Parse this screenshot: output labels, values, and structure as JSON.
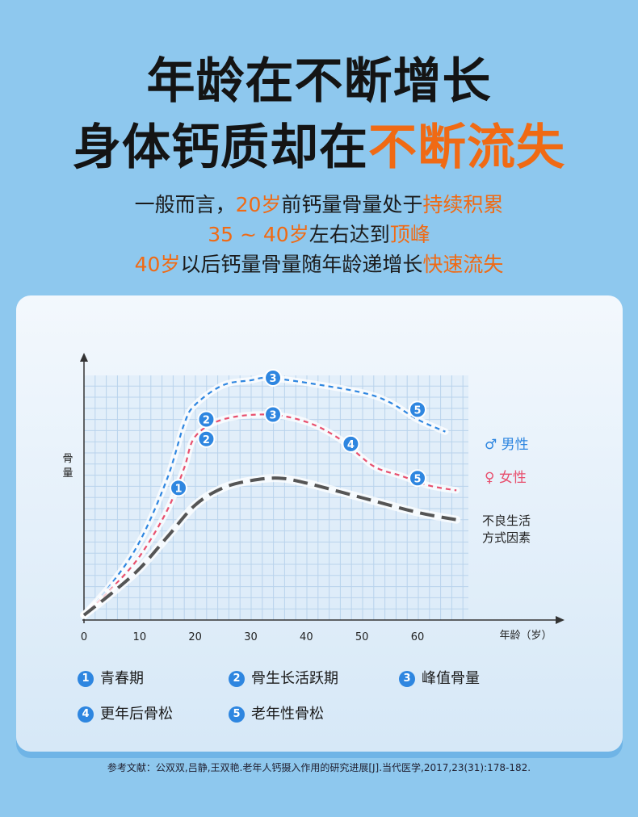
{
  "title_line1": "年龄在不断增长",
  "title_line2_a": "身体钙质却在",
  "title_line2_b": "不断流失",
  "sub1": {
    "a": "一般而言，",
    "b": "20岁",
    "c": "前钙量骨量处于",
    "d": "持续积累"
  },
  "sub2": {
    "a": "35 ~ 40岁",
    "b": "左右达到",
    "c": "顶峰"
  },
  "sub3": {
    "a": "40岁",
    "b": "以后钙量骨量随年龄递增长",
    "c": "快速流失"
  },
  "legend": [
    {
      "num": "1",
      "label": "青春期"
    },
    {
      "num": "2",
      "label": "骨生长活跃期"
    },
    {
      "num": "3",
      "label": "峰值骨量"
    },
    {
      "num": "4",
      "label": "更年后骨松"
    },
    {
      "num": "5",
      "label": "老年性骨松"
    }
  ],
  "reference": "参考文献：公双双,吕静,王双艳.老年人钙摄入作用的研究进展[J].当代医学,2017,23(31):178-182.",
  "chart_data": {
    "type": "line",
    "xlabel": "年龄（岁）",
    "ylabel": "骨量",
    "x_ticks": [
      0,
      10,
      20,
      30,
      40,
      50,
      60
    ],
    "xlim": [
      0,
      70
    ],
    "ylim": [
      0,
      10
    ],
    "y_values_estimated": true,
    "grid": true,
    "series": [
      {
        "name": "♂ 男性",
        "color": "#2e86e0",
        "points": [
          [
            0,
            0.2
          ],
          [
            5,
            1.5
          ],
          [
            10,
            3.2
          ],
          [
            15,
            5.8
          ],
          [
            18,
            8.0
          ],
          [
            20,
            8.8
          ],
          [
            25,
            9.6
          ],
          [
            30,
            9.8
          ],
          [
            33,
            9.9
          ],
          [
            40,
            9.7
          ],
          [
            50,
            9.3
          ],
          [
            55,
            8.9
          ],
          [
            60,
            8.2
          ],
          [
            65,
            7.7
          ]
        ]
      },
      {
        "name": "♀ 女性",
        "color": "#e8506e",
        "points": [
          [
            0,
            0.2
          ],
          [
            5,
            1.3
          ],
          [
            10,
            2.6
          ],
          [
            15,
            4.5
          ],
          [
            18,
            6.2
          ],
          [
            20,
            7.5
          ],
          [
            25,
            8.2
          ],
          [
            33,
            8.4
          ],
          [
            40,
            8.1
          ],
          [
            46,
            7.4
          ],
          [
            52,
            6.3
          ],
          [
            57,
            5.9
          ],
          [
            62,
            5.5
          ],
          [
            67,
            5.3
          ]
        ]
      },
      {
        "name": "不良生活方式因素",
        "color": "#555555",
        "points": [
          [
            0,
            0.2
          ],
          [
            5,
            1.1
          ],
          [
            10,
            2.1
          ],
          [
            15,
            3.4
          ],
          [
            20,
            4.7
          ],
          [
            25,
            5.4
          ],
          [
            30,
            5.7
          ],
          [
            35,
            5.8
          ],
          [
            40,
            5.6
          ],
          [
            50,
            5.0
          ],
          [
            60,
            4.4
          ],
          [
            67,
            4.1
          ]
        ]
      }
    ],
    "markers": [
      {
        "series": "♂ 男性",
        "label": "1",
        "x": 17,
        "y": 5.4
      },
      {
        "series": "♂ 男性",
        "label": "2",
        "x": 22,
        "y": 8.2
      },
      {
        "series": "♂ 男性",
        "label": "3",
        "x": 34,
        "y": 9.9
      },
      {
        "series": "♂ 男性",
        "label": "5",
        "x": 60,
        "y": 8.6
      },
      {
        "series": "♀ 女性",
        "label": "2",
        "x": 22,
        "y": 7.4
      },
      {
        "series": "♀ 女性",
        "label": "3",
        "x": 34,
        "y": 8.4
      },
      {
        "series": "♀ 女性",
        "label": "4",
        "x": 48,
        "y": 7.2
      },
      {
        "series": "♀ 女性",
        "label": "5",
        "x": 60,
        "y": 5.8
      }
    ],
    "series_labels": {
      "male": "♂ 男性",
      "female": "♀ 女性",
      "poor_lifestyle": [
        "不良生活",
        "方式因素"
      ]
    },
    "ylabel_lines": [
      "骨",
      "量"
    ]
  }
}
